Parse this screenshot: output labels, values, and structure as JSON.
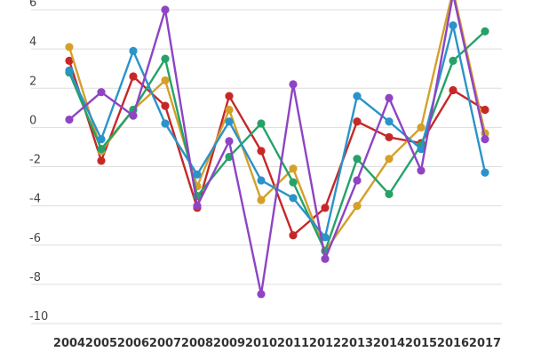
{
  "chart_data": {
    "type": "line",
    "title": "",
    "xlabel": "",
    "ylabel": "",
    "grid": true,
    "legend": "none",
    "x": [
      "2004",
      "2005",
      "2006",
      "2007",
      "2008",
      "2009",
      "2010",
      "2011",
      "2012",
      "2013",
      "2014",
      "2015",
      "2016",
      "2017"
    ],
    "yticks": [
      6,
      4,
      2,
      0,
      -2,
      -4,
      -6,
      -8,
      -10
    ],
    "ytick_labels": [
      "6",
      "4",
      "2",
      "0",
      "-2",
      "-4",
      "-6",
      "-8",
      "-10"
    ],
    "ylim": [
      -10.5,
      6.5
    ],
    "series": [
      {
        "color": "#c62828",
        "values": [
          3.4,
          -1.7,
          2.6,
          1.1,
          -4.1,
          1.6,
          -1.2,
          -5.5,
          -4.1,
          0.3,
          -0.5,
          -0.8,
          1.9,
          0.9
        ]
      },
      {
        "color": "#d4a02a",
        "values": [
          4.1,
          -1.2,
          0.9,
          2.4,
          -3.0,
          0.9,
          -3.7,
          -2.1,
          -6.3,
          -4.0,
          -1.6,
          0.0,
          7.0,
          -0.3
        ]
      },
      {
        "color": "#26a269",
        "values": [
          2.8,
          -1.1,
          0.9,
          3.5,
          -3.5,
          -1.5,
          0.2,
          -2.8,
          -6.3,
          -1.6,
          -3.4,
          -0.9,
          3.4,
          4.9
        ]
      },
      {
        "color": "#2a93c9",
        "values": [
          2.9,
          -0.6,
          3.9,
          0.2,
          -2.4,
          0.3,
          -2.7,
          -3.6,
          -5.6,
          1.6,
          0.3,
          -1.1,
          5.2,
          -2.3
        ]
      },
      {
        "color": "#8e44c4",
        "values": [
          0.4,
          1.8,
          0.6,
          6.0,
          -4.0,
          -0.7,
          -8.5,
          2.2,
          -6.7,
          -2.7,
          1.5,
          -2.2,
          6.8,
          -0.6
        ]
      }
    ]
  }
}
